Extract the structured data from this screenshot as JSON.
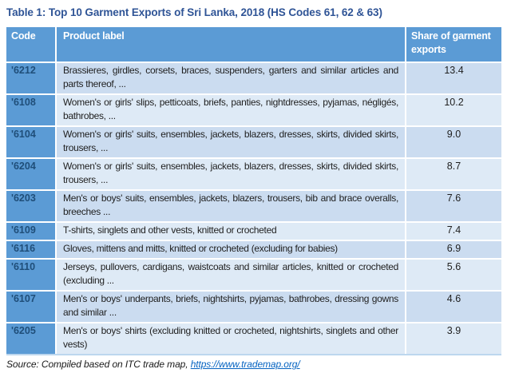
{
  "title": "Table 1: Top 10 Garment Exports of Sri Lanka, 2018 (HS Codes 61, 62 & 63)",
  "table": {
    "columns": [
      "Code",
      "Product label",
      "Share of garment exports"
    ],
    "rows": [
      {
        "code": "'6212",
        "product": "Brassieres, girdles, corsets, braces, suspenders, garters and similar articles and parts thereof, ...",
        "share": "13.4"
      },
      {
        "code": "'6108",
        "product": "Women's or girls' slips, petticoats, briefs, panties, nightdresses, pyjamas, négligés, bathrobes, ...",
        "share": "10.2"
      },
      {
        "code": "'6104",
        "product": "Women's or girls' suits, ensembles, jackets, blazers, dresses, skirts, divided skirts, trousers, ...",
        "share": "9.0"
      },
      {
        "code": "'6204",
        "product": "Women's or girls' suits, ensembles, jackets, blazers, dresses, skirts, divided skirts, trousers, ...",
        "share": "8.7"
      },
      {
        "code": "'6203",
        "product": "Men's or boys' suits, ensembles, jackets, blazers, trousers, bib and brace overalls, breeches ...",
        "share": "7.6"
      },
      {
        "code": "'6109",
        "product": "T-shirts, singlets and other vests, knitted or crocheted",
        "share": "7.4"
      },
      {
        "code": "'6116",
        "product": "Gloves, mittens and mitts, knitted or crocheted (excluding for babies)",
        "share": "6.9"
      },
      {
        "code": "'6110",
        "product": "Jerseys, pullovers, cardigans, waistcoats and similar articles, knitted or crocheted (excluding ...",
        "share": "5.6"
      },
      {
        "code": "'6107",
        "product": "Men's or boys' underpants, briefs, nightshirts, pyjamas, bathrobes, dressing gowns and similar ...",
        "share": "4.6"
      },
      {
        "code": "'6205",
        "product": "Men's or boys' shirts (excluding knitted or crocheted, nightshirts, singlets and other vests)",
        "share": "3.9"
      }
    ]
  },
  "footer": {
    "source_prefix": "Source: Compiled based on ITC trade map, ",
    "link_text": "https://www.trademap.org/"
  },
  "colors": {
    "header_bg": "#5B9BD5",
    "code_text": "#1F4E79",
    "header_text": "#FFFFFF",
    "row_odd_bg": "#CBDCF0",
    "row_even_bg": "#DEEAF6",
    "title_text": "#2F5496",
    "link": "#0563C1",
    "body_text": "#1F1F1F",
    "table_bottom": "#BDD7EE"
  }
}
